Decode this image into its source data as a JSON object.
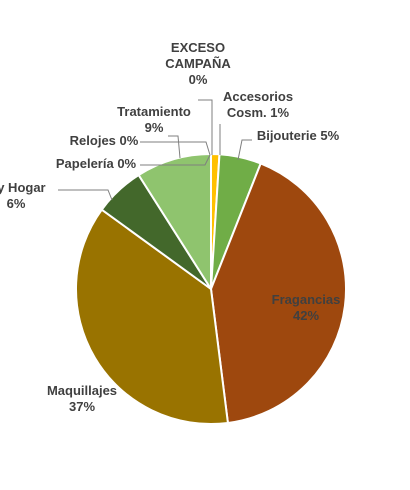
{
  "chart_data": {
    "type": "pie",
    "title": "",
    "legend": "none",
    "slices": [
      {
        "label_lines": [
          "EXCESO",
          "CAMPAÑA",
          "0%"
        ],
        "category": "EXCESO CAMPAÑA",
        "percent": 0,
        "value": 0.0,
        "color": "#4472c4"
      },
      {
        "label_lines": [
          "Accesorios",
          "Cosm. 1%"
        ],
        "category": "Accesorios Cosm.",
        "percent": 1,
        "value": 1.0,
        "color": "#ffc000"
      },
      {
        "label_lines": [
          "Bijouterie 5%"
        ],
        "category": "Bijouterie",
        "percent": 5,
        "value": 5.0,
        "color": "#70ad47"
      },
      {
        "label_lines": [
          "Fragancias",
          "42%"
        ],
        "category": "Fragancias",
        "percent": 42,
        "value": 42.0,
        "color": "#9e480e"
      },
      {
        "label_lines": [
          "Maquillajes",
          "37%"
        ],
        "category": "Maquillajes",
        "percent": 37,
        "value": 37.0,
        "color": "#997300"
      },
      {
        "label_lines": [
          "a y Hogar",
          "6%"
        ],
        "category": "a y Hogar",
        "percent": 6,
        "value": 6.0,
        "color": "#43682b"
      },
      {
        "label_lines": [
          "Papelería 0%"
        ],
        "category": "Papelería",
        "percent": 0,
        "value": 0.0,
        "color": "#264478"
      },
      {
        "label_lines": [
          "Relojes 0%"
        ],
        "category": "Relojes",
        "percent": 0,
        "value": 0.0,
        "color": "#636363"
      },
      {
        "label_lines": [
          "Tratamiento",
          "9%"
        ],
        "category": "Tratamiento",
        "percent": 9,
        "value": 9.0,
        "color": "#8fc46e"
      }
    ]
  }
}
